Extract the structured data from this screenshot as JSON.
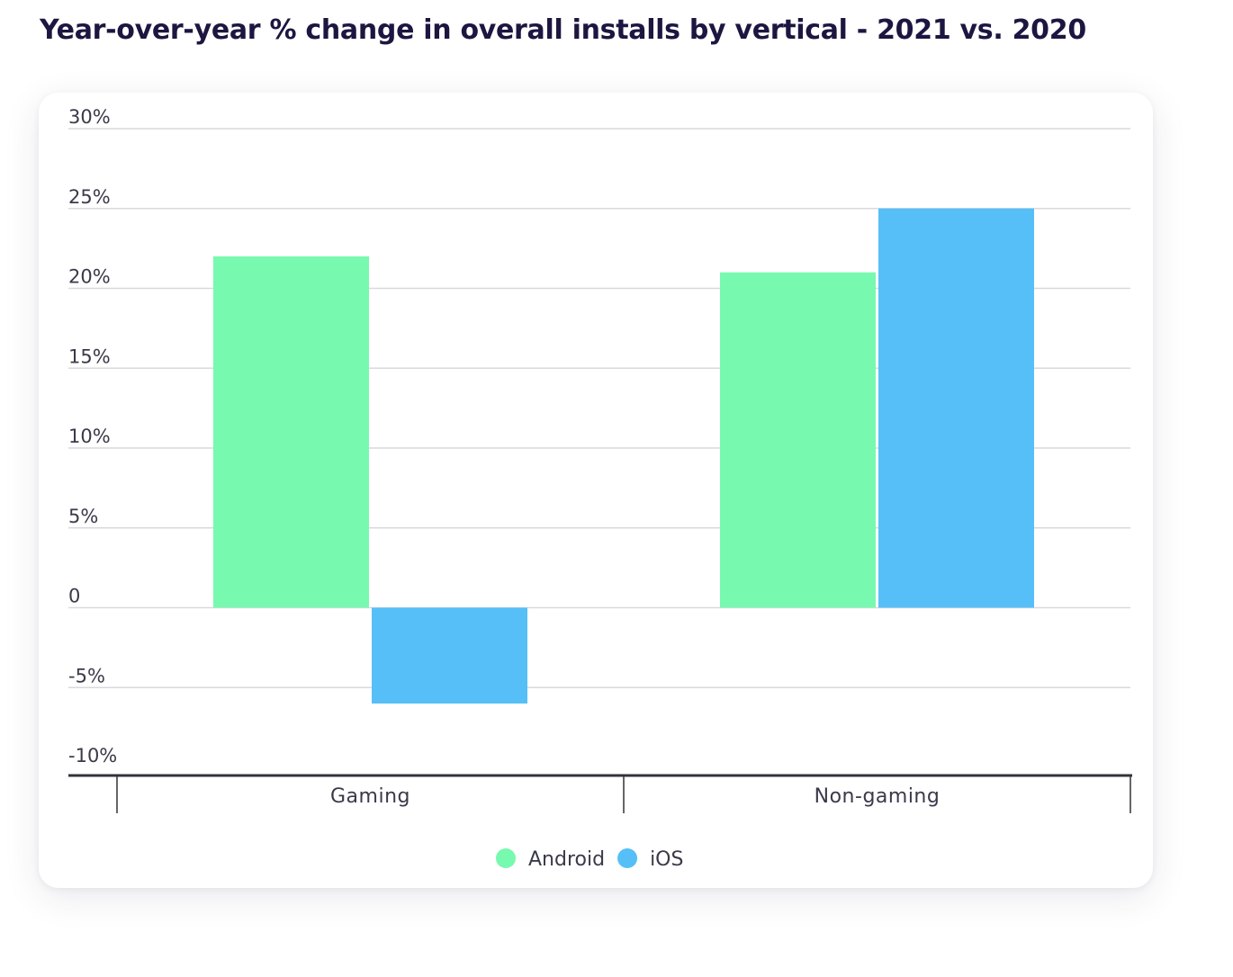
{
  "title": "Year-over-year % change in overall installs by vertical - 2021 vs. 2020",
  "colors": {
    "android": "#78f9b0",
    "ios": "#56bff8",
    "grid": "#d9d9de",
    "axis": "#333338"
  },
  "chart_data": {
    "type": "bar",
    "title": "Year-over-year % change in overall installs by vertical - 2021 vs. 2020",
    "xlabel": "",
    "ylabel": "",
    "categories": [
      "Gaming",
      "Non-gaming"
    ],
    "series": [
      {
        "name": "Android",
        "values": [
          22,
          21
        ]
      },
      {
        "name": "iOS",
        "values": [
          -6,
          25
        ]
      }
    ],
    "ylim": [
      -10,
      30
    ],
    "yticks": [
      30,
      25,
      20,
      15,
      10,
      5,
      0,
      -5,
      -10
    ],
    "ytick_labels": [
      "30%",
      "25%",
      "20%",
      "15%",
      "10%",
      "5%",
      "0",
      "-5%",
      "-10%"
    ],
    "grid": true,
    "legend": "bottom-center"
  }
}
